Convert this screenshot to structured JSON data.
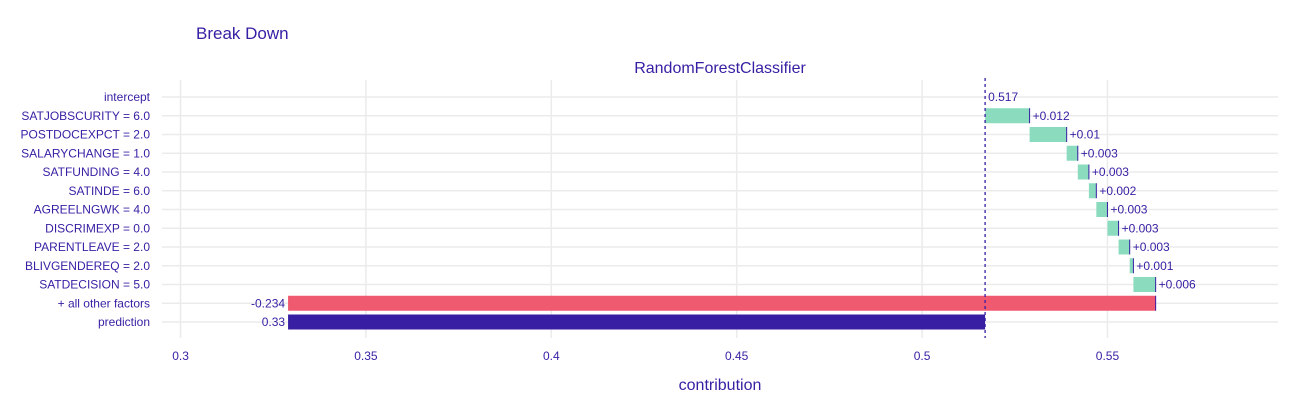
{
  "chart_data": {
    "type": "bar",
    "subtype": "waterfall-break-down",
    "title": "Break Down",
    "subtitle": "RandomForestClassifier",
    "xlabel": "contribution",
    "xlim": [
      0.295,
      0.596
    ],
    "xticks": [
      0.3,
      0.35,
      0.4,
      0.45,
      0.5,
      0.55
    ],
    "xtick_labels": [
      "0.3",
      "0.35",
      "0.4",
      "0.45",
      "0.5",
      "0.55"
    ],
    "grid": true,
    "intercept_line": 0.517,
    "colors": {
      "positive": "#8bdcbe",
      "negative": "#f05a71",
      "prediction": "#371ea3",
      "intercept": "#371ea3",
      "grid": "#ebebeb",
      "text": "#371ea3"
    },
    "rows": [
      {
        "label": "intercept",
        "kind": "intercept",
        "start": 0.517,
        "end": 0.517,
        "text": "0.517"
      },
      {
        "label": "SATJOBSCURITY = 6.0",
        "kind": "positive",
        "start": 0.517,
        "end": 0.529,
        "text": "+0.012"
      },
      {
        "label": "POSTDOCEXPCT = 2.0",
        "kind": "positive",
        "start": 0.529,
        "end": 0.539,
        "text": "+0.01"
      },
      {
        "label": "SALARYCHANGE = 1.0",
        "kind": "positive",
        "start": 0.539,
        "end": 0.542,
        "text": "+0.003"
      },
      {
        "label": "SATFUNDING = 4.0",
        "kind": "positive",
        "start": 0.542,
        "end": 0.545,
        "text": "+0.003"
      },
      {
        "label": "SATINDE = 6.0",
        "kind": "positive",
        "start": 0.545,
        "end": 0.547,
        "text": "+0.002"
      },
      {
        "label": "AGREELNGWK = 4.0",
        "kind": "positive",
        "start": 0.547,
        "end": 0.55,
        "text": "+0.003"
      },
      {
        "label": "DISCRIMEXP = 0.0",
        "kind": "positive",
        "start": 0.55,
        "end": 0.553,
        "text": "+0.003"
      },
      {
        "label": "PARENTLEAVE = 2.0",
        "kind": "positive",
        "start": 0.553,
        "end": 0.556,
        "text": "+0.003"
      },
      {
        "label": "BLIVGENDEREQ = 2.0",
        "kind": "positive",
        "start": 0.556,
        "end": 0.557,
        "text": "+0.001"
      },
      {
        "label": "SATDECISION = 5.0",
        "kind": "positive",
        "start": 0.557,
        "end": 0.563,
        "text": "+0.006"
      },
      {
        "label": "+ all other factors",
        "kind": "negative",
        "start": 0.563,
        "end": 0.329,
        "text": "-0.234"
      },
      {
        "label": "prediction",
        "kind": "prediction",
        "start": 0.329,
        "end": 0.517,
        "text": "0.33"
      }
    ]
  }
}
